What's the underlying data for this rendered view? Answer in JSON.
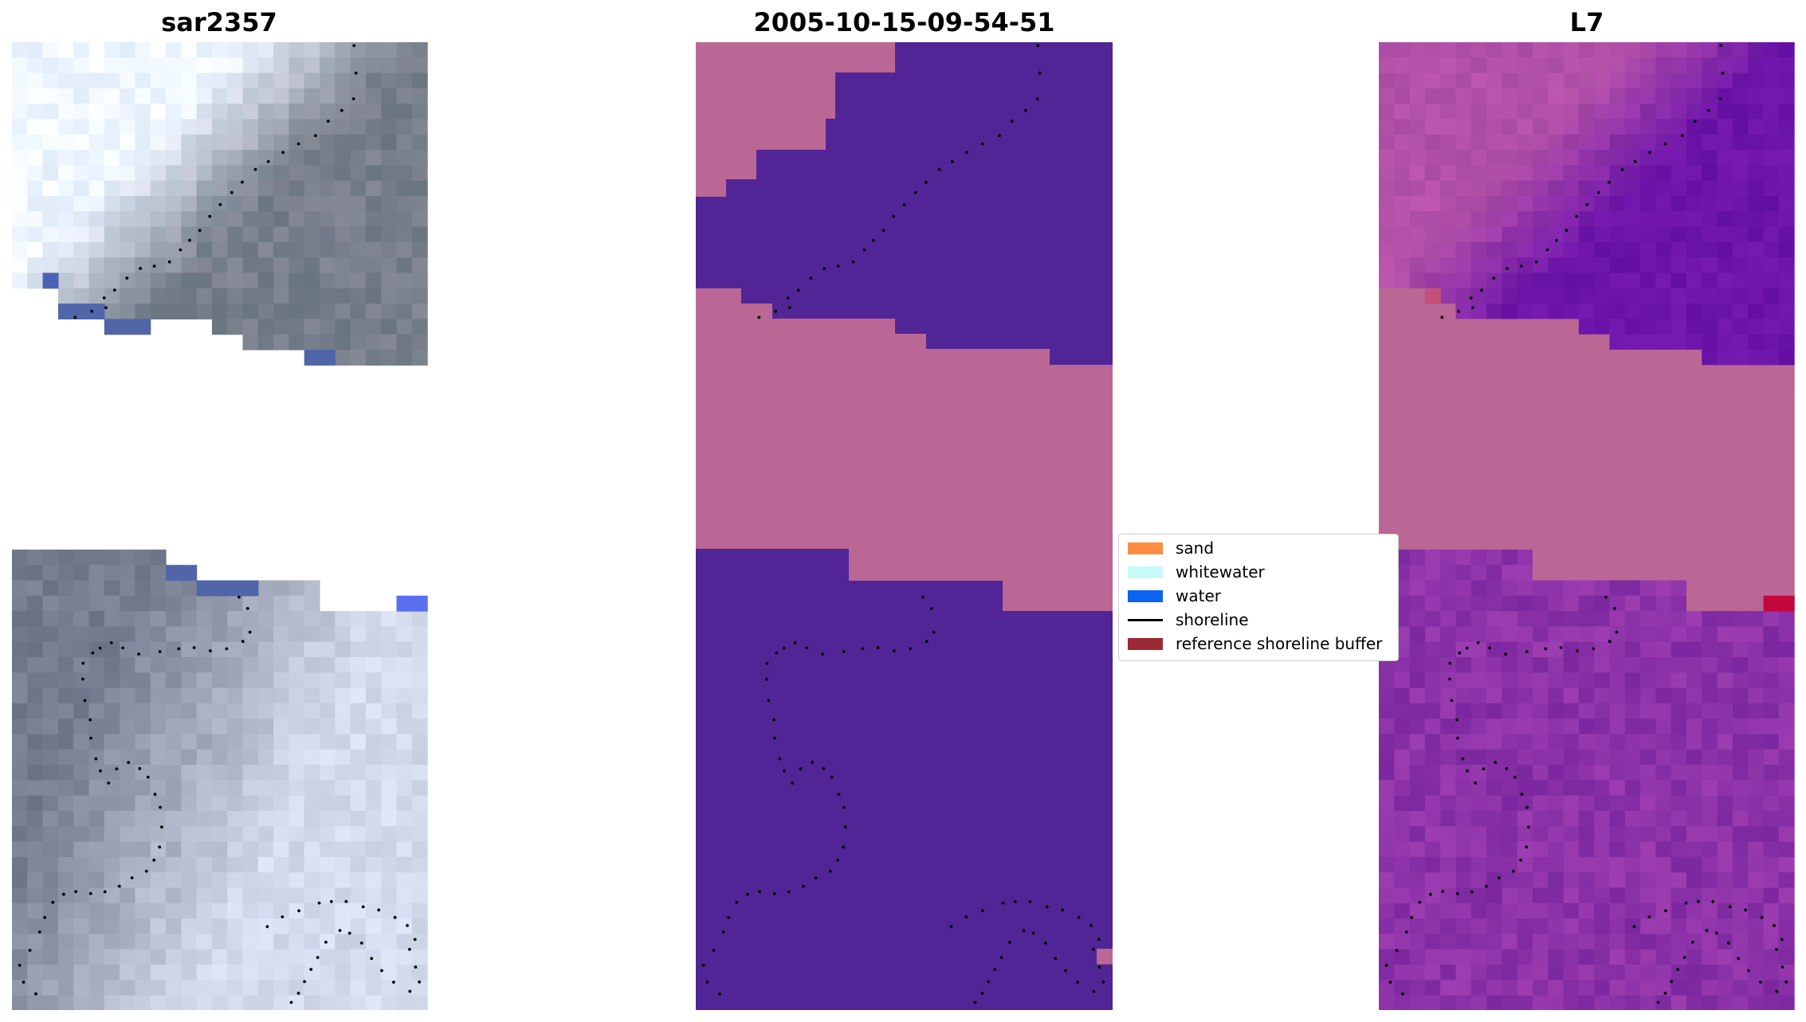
{
  "panels": [
    {
      "title": "sar2357"
    },
    {
      "title": "2005-10-15-09-54-51"
    },
    {
      "title": "L7"
    }
  ],
  "legend": {
    "items": [
      {
        "label": "sand",
        "kind": "patch",
        "color": "#ff8c42"
      },
      {
        "label": "whitewater",
        "kind": "patch",
        "color": "#c8fafa"
      },
      {
        "label": "water",
        "kind": "patch",
        "color": "#0a64f0"
      },
      {
        "label": "shoreline",
        "kind": "line",
        "color": "#000000"
      },
      {
        "label": "reference shoreline buffer",
        "kind": "patch",
        "color": "#9c2a34"
      }
    ]
  },
  "colors": {
    "classified_water_purple": "#512596",
    "classified_land_pink": "#ba6795",
    "mndwi_purple": "#8031a3",
    "mndwi_dark_purple": "#6c1ea6",
    "mndwi_masked_pink": "#ba6795",
    "mndwi_highlight_red": "#c4073a",
    "shoreline_dots": "#000000"
  }
}
